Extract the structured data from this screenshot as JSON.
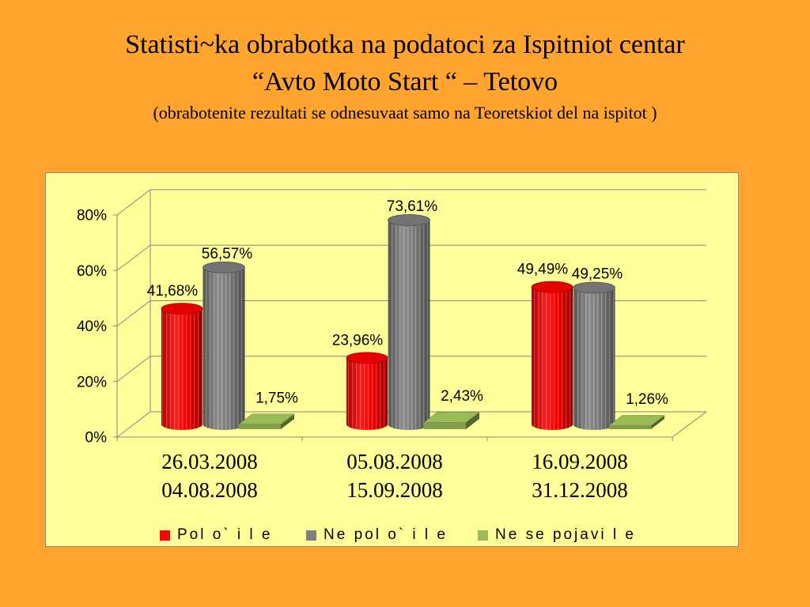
{
  "slide": {
    "title_line1": "Statisti~ka obrabotka na podatoci za Ispitniot centar",
    "title_line2": "“Avto Moto Start “ – Tetovo",
    "subtitle": "(obrabotenite rezultati se odnesuvaat samo na Teoretskiot del na ispitot )"
  },
  "colors": {
    "background": "#FFA52F",
    "plot_area": "#FFFF99",
    "grid": "#868686"
  },
  "chart_data": {
    "type": "bar",
    "categories": [
      [
        "26.03.2008",
        "04.08.2008"
      ],
      [
        "05.08.2008",
        "15.09.2008"
      ],
      [
        "16.09.2008",
        "31.12.2008"
      ]
    ],
    "series": [
      {
        "name": "Pol o` i l e",
        "color": "#FF0000",
        "values": [
          41.68,
          23.96,
          49.49
        ],
        "data_labels": [
          "41,68%",
          "23,96%",
          "49,49%"
        ]
      },
      {
        "name": "Ne pol o` i l e",
        "color": "#808080",
        "values": [
          56.57,
          73.61,
          49.25
        ],
        "data_labels": [
          "56,57%",
          "73,61%",
          "49,25%"
        ]
      },
      {
        "name": "Ne se pojavi l e",
        "color": "#9BBB59",
        "values": [
          1.75,
          2.43,
          1.26
        ],
        "data_labels": [
          "1,75%",
          "2,43%",
          "1,26%"
        ]
      }
    ],
    "y_ticks": [
      "0%",
      "20%",
      "40%",
      "60%",
      "80%"
    ],
    "ylim": [
      0,
      80
    ],
    "grid": true,
    "legend": "bottom"
  }
}
